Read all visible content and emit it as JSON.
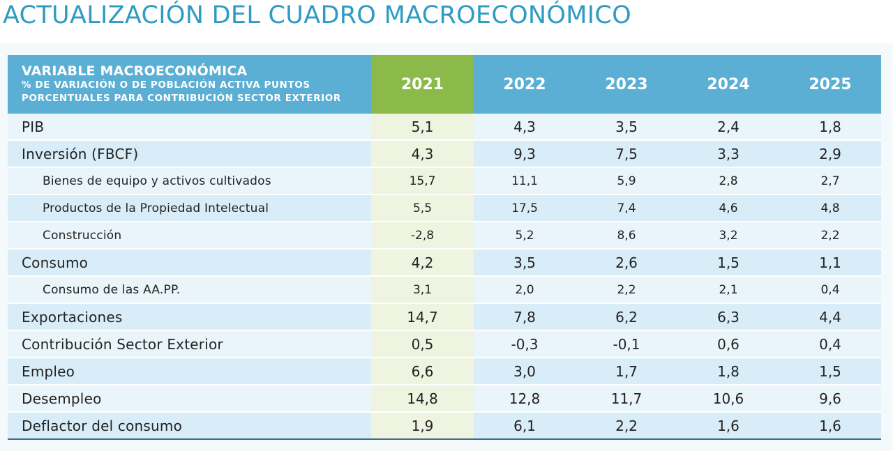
{
  "title": "ACTUALIZACIÓN DEL CUADRO MACROECONÓMICO",
  "header": {
    "variable_main": "VARIABLE MACROECONÓMICA",
    "variable_sub1": "% DE VARIACIÓN O DE POBLACIÓN ACTIVA PUNTOS",
    "variable_sub2": "PORCENTUALES PARA CONTRIBUCIÓN SECTOR EXTERIOR",
    "years": [
      "2021",
      "2022",
      "2023",
      "2024",
      "2025"
    ]
  },
  "highlight_color": "#8bba4a",
  "header_color": "#5baed4",
  "rows": [
    {
      "label": "PIB",
      "values": [
        "5,1",
        "4,3",
        "3,5",
        "2,4",
        "1,8"
      ],
      "sub": false
    },
    {
      "label": "Inversión (FBCF)",
      "values": [
        "4,3",
        "9,3",
        "7,5",
        "3,3",
        "2,9"
      ],
      "sub": false
    },
    {
      "label": "Bienes de equipo y activos cultivados",
      "values": [
        "15,7",
        "11,1",
        "5,9",
        "2,8",
        "2,7"
      ],
      "sub": true
    },
    {
      "label": "Productos de la Propiedad Intelectual",
      "values": [
        "5,5",
        "17,5",
        "7,4",
        "4,6",
        "4,8"
      ],
      "sub": true
    },
    {
      "label": "Construcción",
      "values": [
        "-2,8",
        "5,2",
        "8,6",
        "3,2",
        "2,2"
      ],
      "sub": true
    },
    {
      "label": "Consumo",
      "values": [
        "4,2",
        "3,5",
        "2,6",
        "1,5",
        "1,1"
      ],
      "sub": false
    },
    {
      "label": "Consumo de las  AA.PP.",
      "values": [
        "3,1",
        "2,0",
        "2,2",
        "2,1",
        "0,4"
      ],
      "sub": true
    },
    {
      "label": "Exportaciones",
      "values": [
        "14,7",
        "7,8",
        "6,2",
        "6,3",
        "4,4"
      ],
      "sub": false
    },
    {
      "label": "Contribución Sector Exterior",
      "values": [
        "0,5",
        "-0,3",
        "-0,1",
        "0,6",
        "0,4"
      ],
      "sub": false
    },
    {
      "label": "Empleo",
      "values": [
        "6,6",
        "3,0",
        "1,7",
        "1,8",
        "1,5"
      ],
      "sub": false
    },
    {
      "label": "Desempleo",
      "values": [
        "14,8",
        "12,8",
        "11,7",
        "10,6",
        "9,6"
      ],
      "sub": false
    },
    {
      "label": "Deflactor del consumo",
      "values": [
        "1,9",
        "6,1",
        "2,2",
        "1,6",
        "1,6"
      ],
      "sub": false
    }
  ]
}
